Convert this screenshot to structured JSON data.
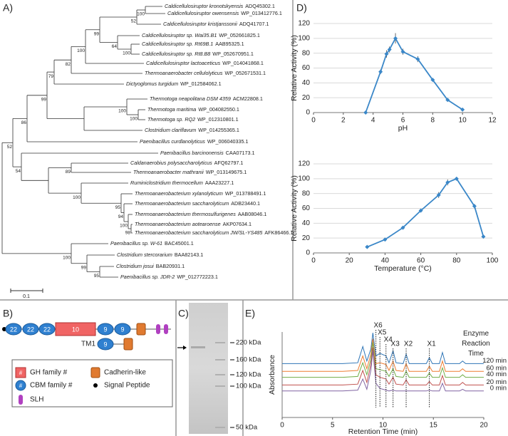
{
  "panel_labels": [
    "A)",
    "B)",
    "C)",
    "D)",
    "E)"
  ],
  "tree": {
    "leaves": [
      {
        "species": "Caldicellulosiruptor kronotskyensis",
        "accession": "ADQ45302.1"
      },
      {
        "species": "Caldicellulosiruptor owensensis",
        "accession": "WP_013412776.1"
      },
      {
        "species": "Caldicellulosiruptor kristjanssonii",
        "accession": "ADQ41707.1"
      },
      {
        "species": "Caldicellulosiruptor sp. Wai35.B1",
        "accession": "WP_052661825.1"
      },
      {
        "species": "Caldicellulosiruptor sp. Rt69B.1",
        "accession": "AAB95325.1"
      },
      {
        "species": "Caldicellulosiruptor sp. Rt8.B8",
        "accession": "WP_052670951.1"
      },
      {
        "species": "Caldicellulosiruptor lactoaceticus",
        "accession": "WP_014041868.1"
      },
      {
        "species": "Thermoanaerobacter cellulolyticus",
        "accession": "WP_052671531.1"
      },
      {
        "species": "Dictyoglomus turgidum",
        "accession": "WP_012584062.1"
      },
      {
        "species": "Thermotoga neapolitana DSM 4359",
        "accession": "ACM22808.1"
      },
      {
        "species": "Thermotoga maritima",
        "accession": "WP_004082550.1"
      },
      {
        "species": "Thermotoga sp. RQ2",
        "accession": "WP_012310801.1"
      },
      {
        "species": "Clostridium clariflavum",
        "accession": "WP_014255365.1"
      },
      {
        "species": "Paenibacillus curdlanolyticus",
        "accession": "WP_006040335.1"
      },
      {
        "species": "Paenibacillus barcinonensis",
        "accession": "CAA07173.1"
      },
      {
        "species": "Caldanaerobius polysaccharolyticus",
        "accession": "AFQ62797.1"
      },
      {
        "species": "Thermoanaerobacter mathranii",
        "accession": "WP_013149675.1"
      },
      {
        "species": "Ruminiclostridium thermocellum",
        "accession": "AAA23227.1"
      },
      {
        "species": "Thermoanaerobacterium xylanolyticum",
        "accession": "WP_013788491.1"
      },
      {
        "species": "Thermoanaerobacterium saccharolyticum",
        "accession": "ADB23440.1"
      },
      {
        "species": "Thermoanaerobacterium thermosulfurigenes",
        "accession": "AAB08046.1"
      },
      {
        "species": "Thermoanaerobacterium aotearoense",
        "accession": "AKP07634.1"
      },
      {
        "species": "Thermoanaerobacterium saccharolyticum JW/SL-YS485",
        "accession": "AFK86466.1"
      },
      {
        "species": "Paenibacillus sp. W-61",
        "accession": "BAC45001.1"
      },
      {
        "species": "Clostridium stercorarium",
        "accession": "BAA82143.1"
      },
      {
        "species": "Clostridium josui",
        "accession": "BAB20931.1"
      },
      {
        "species": "Paenibacillus sp. JDR-2",
        "accession": "WP_012772223.1"
      }
    ],
    "bootstrap": [
      52,
      100,
      99,
      64,
      100,
      100,
      82,
      79,
      99,
      86,
      100,
      100,
      52,
      89,
      100,
      95,
      94,
      100,
      98,
      54,
      100,
      99,
      95
    ],
    "scale_bar": "0.1"
  },
  "domains": {
    "protein": [
      "22",
      "22",
      "22",
      "10",
      "9",
      "9"
    ],
    "tm1": {
      "name": "TM1",
      "domains": [
        "9"
      ]
    },
    "legend": [
      {
        "symbol": "#",
        "label": "GH family #"
      },
      {
        "symbol": "#",
        "label": "CBM family #"
      },
      {
        "label": "SLH"
      },
      {
        "label": "Cadherin-like"
      },
      {
        "label": "Signal Peptide"
      }
    ]
  },
  "gel": {
    "markers": [
      "220 kDa",
      "160 kDa",
      "120 kDa",
      "100 kDa",
      "50 kDa"
    ]
  },
  "chart_data": [
    {
      "type": "line",
      "xlabel": "pH",
      "ylabel": "Relative Activity (%)",
      "x": [
        3.5,
        4.5,
        4.9,
        5.1,
        5.5,
        6,
        7,
        8,
        9,
        10
      ],
      "values": [
        0,
        55,
        79,
        85,
        100,
        82,
        72,
        44,
        17,
        4
      ],
      "errors": [
        0,
        3,
        5,
        4,
        7,
        4,
        4,
        2,
        1,
        1
      ],
      "color": "#3a87c8",
      "marker": "diamond",
      "xlim": [
        0,
        12
      ],
      "xticks": [
        0,
        2,
        4,
        6,
        8,
        10,
        12
      ],
      "ylim": [
        0,
        120
      ],
      "yticks": [
        0,
        20,
        40,
        60,
        80,
        100,
        120
      ],
      "grid": true
    },
    {
      "type": "line",
      "xlabel": "Temperature (°C)",
      "ylabel": "Relative Activity (%)",
      "x": [
        30,
        40,
        50,
        60,
        70,
        75,
        80,
        90,
        95
      ],
      "values": [
        8,
        18,
        34,
        57,
        78,
        95,
        100,
        63,
        22
      ],
      "errors": [
        1,
        1,
        1,
        1,
        4,
        4,
        2,
        3,
        1
      ],
      "color": "#3a87c8",
      "marker": "diamond",
      "xlim": [
        0,
        100
      ],
      "xticks": [
        0,
        20,
        40,
        60,
        80,
        100
      ],
      "ylim": [
        0,
        120
      ],
      "yticks": [
        0,
        20,
        40,
        60,
        80,
        100,
        120
      ],
      "grid": true
    },
    {
      "type": "line",
      "xlabel": "Retention Time (min)",
      "ylabel": "Absorbance",
      "legend_title": "Enzyme Reaction Time",
      "x": [
        0,
        6,
        7.5,
        8,
        8.4,
        8.8,
        9,
        9.3,
        9.7,
        10.3,
        10.6,
        11,
        11.3,
        12,
        12.3,
        12.6,
        14.3,
        14.6,
        14.9,
        15.6,
        15.9,
        16.2,
        17.6,
        17.9,
        18.2,
        20
      ],
      "series": [
        {
          "name": "120 min",
          "color": "#2e75b6",
          "values": [
            63,
            63,
            64,
            83,
            66,
            80,
            99,
            72,
            75,
            72,
            64,
            78,
            64,
            63,
            74,
            63,
            63,
            70,
            63,
            63,
            76,
            63,
            63,
            66,
            63,
            63
          ]
        },
        {
          "name": "60 min",
          "color": "#ed7d31",
          "values": [
            54,
            54,
            55,
            72,
            57,
            74,
            92,
            63,
            64,
            62,
            55,
            66,
            55,
            54,
            63,
            54,
            54,
            60,
            54,
            54,
            66,
            54,
            54,
            57,
            54,
            54
          ]
        },
        {
          "name": "40 min",
          "color": "#70ad47",
          "values": [
            47,
            47,
            48,
            64,
            50,
            68,
            88,
            57,
            56,
            54,
            48,
            57,
            48,
            47,
            54,
            47,
            47,
            52,
            47,
            47,
            58,
            47,
            47,
            50,
            47,
            47
          ]
        },
        {
          "name": "20 min",
          "color": "#c0504d",
          "values": [
            38,
            38,
            39,
            55,
            41,
            62,
            82,
            50,
            47,
            45,
            39,
            47,
            39,
            38,
            44,
            38,
            38,
            42,
            38,
            38,
            49,
            38,
            38,
            41,
            38,
            38
          ]
        },
        {
          "name": "0 min",
          "color": "#8064a2",
          "values": [
            31,
            31,
            32,
            45,
            33,
            55,
            78,
            40,
            34,
            32,
            31,
            32,
            31,
            31,
            31,
            31,
            31,
            32,
            31,
            31,
            40,
            31,
            31,
            33,
            31,
            31
          ]
        }
      ],
      "annotations": [
        {
          "label": "X6",
          "x": 9.3
        },
        {
          "label": "X5",
          "x": 9.7
        },
        {
          "label": "X4",
          "x": 10.3
        },
        {
          "label": "X3",
          "x": 11
        },
        {
          "label": "X2",
          "x": 12.3
        },
        {
          "label": "X1",
          "x": 14.6
        }
      ],
      "xlim": [
        0,
        20
      ],
      "xticks": [
        0,
        5,
        10,
        15,
        20
      ],
      "ylim": [
        0,
        100
      ],
      "grid": false
    }
  ]
}
